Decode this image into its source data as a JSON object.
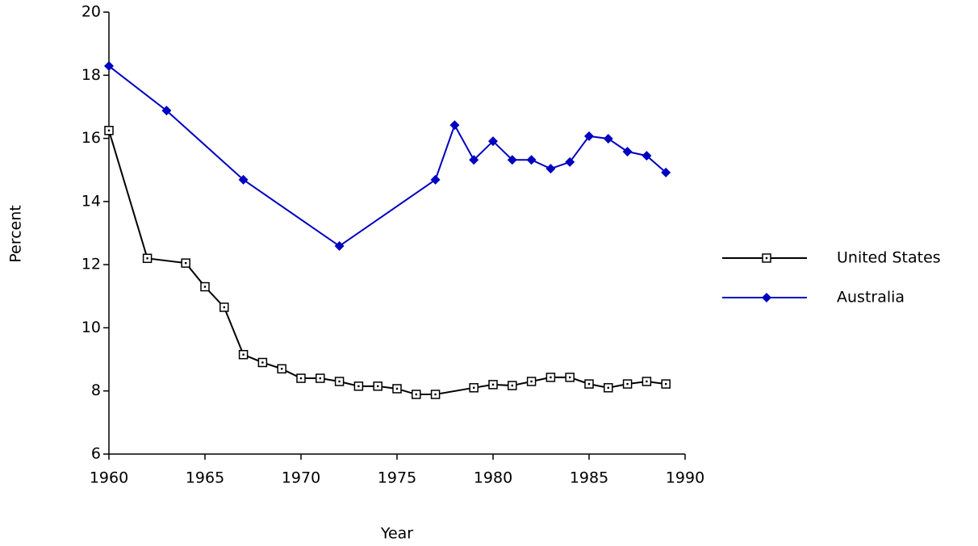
{
  "chart_data": {
    "type": "line",
    "xlabel": "Year",
    "ylabel": "Percent",
    "xlim": [
      1960,
      1990
    ],
    "xticks": [
      1960,
      1965,
      1970,
      1975,
      1980,
      1985,
      1990
    ],
    "ylim": [
      6,
      20
    ],
    "yticks": [
      6,
      8,
      10,
      12,
      14,
      16,
      18,
      20
    ],
    "legend": "right",
    "series": [
      {
        "name": "United States",
        "color": "#000000",
        "marker": "square",
        "x": [
          1960,
          1962,
          1964,
          1965,
          1966,
          1967,
          1968,
          1969,
          1970,
          1971,
          1972,
          1973,
          1974,
          1975,
          1976,
          1977,
          1979,
          1980,
          1981,
          1982,
          1983,
          1984,
          1985,
          1986,
          1987,
          1988,
          1989
        ],
        "values": [
          16.25,
          12.2,
          12.05,
          11.3,
          10.65,
          9.15,
          8.9,
          8.7,
          8.4,
          8.4,
          8.3,
          8.15,
          8.15,
          8.07,
          7.89,
          7.89,
          8.1,
          8.2,
          8.17,
          8.3,
          8.43,
          8.43,
          8.22,
          8.1,
          8.22,
          8.3,
          8.22
        ]
      },
      {
        "name": "Australia",
        "color": "#0000c0",
        "marker": "diamond",
        "x": [
          1960,
          1963,
          1967,
          1972,
          1977,
          1978,
          1979,
          1980,
          1981,
          1982,
          1983,
          1984,
          1985,
          1986,
          1987,
          1988,
          1989
        ],
        "values": [
          18.29,
          16.88,
          14.69,
          12.59,
          14.69,
          16.42,
          15.32,
          15.91,
          15.32,
          15.32,
          15.04,
          15.25,
          16.07,
          15.99,
          15.58,
          15.45,
          14.92
        ]
      }
    ]
  }
}
